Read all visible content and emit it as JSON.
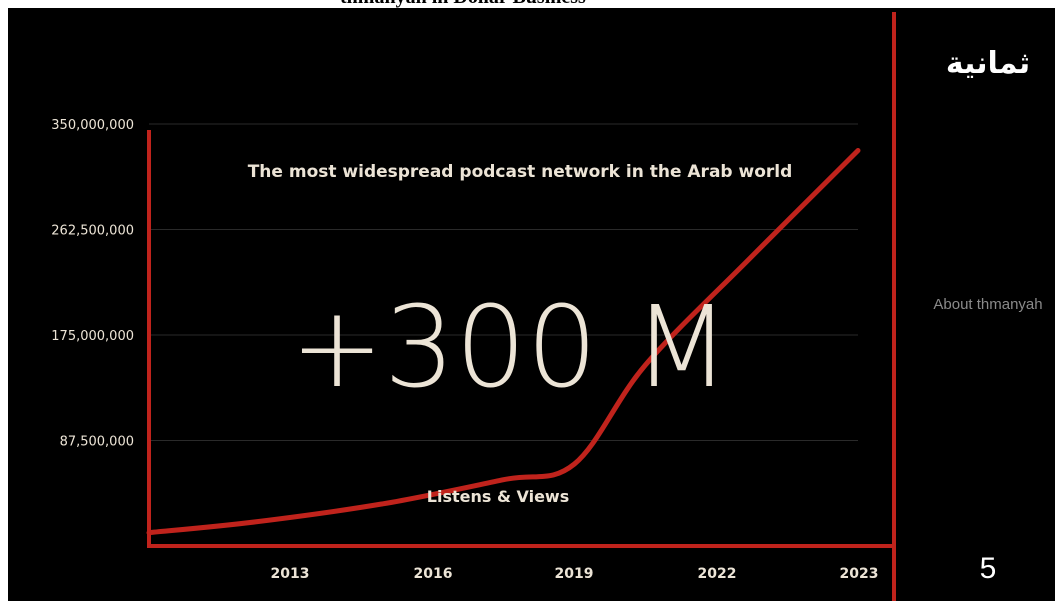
{
  "top_caption": "thmanyah in Dollar Business",
  "sidebar": {
    "logo": "ثمانية",
    "about_label": "About thmanyah",
    "page_number": "5"
  },
  "colors": {
    "background": "#000000",
    "accent": "#c0231c",
    "text": "#ece4d6",
    "grid": "#2a2a2a",
    "muted": "#8a8a8a"
  },
  "chart_data": {
    "type": "line",
    "title": "The most widespread podcast network in the Arab world",
    "headline": "+300 M",
    "series_label": "Listens & Views",
    "x_tick_labels": [
      "2013",
      "2016",
      "2019",
      "2022",
      "2023"
    ],
    "y_tick_labels": [
      "350,000,000",
      "262,500,000",
      "175,000,000",
      "87,500,000"
    ],
    "y_ticks": [
      350000000,
      262500000,
      175000000,
      87500000
    ],
    "ylim": [
      0,
      350000000
    ],
    "grid": true,
    "series": [
      {
        "values": [
          {
            "x": 0.0,
            "y": 11000000
          },
          {
            "x": 0.15,
            "y": 20000000
          },
          {
            "x": 0.33,
            "y": 35000000
          },
          {
            "x": 0.5,
            "y": 55000000
          },
          {
            "x": 0.6,
            "y": 68000000
          },
          {
            "x": 0.7,
            "y": 150000000
          },
          {
            "x": 0.85,
            "y": 240000000
          },
          {
            "x": 1.0,
            "y": 328000000
          }
        ]
      }
    ]
  }
}
